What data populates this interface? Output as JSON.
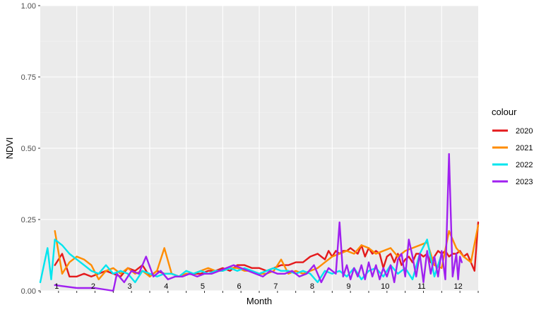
{
  "chart_data": {
    "type": "line",
    "xlabel": "Month",
    "ylabel": "NDVI",
    "ylim": [
      0,
      1
    ],
    "xlim": [
      0,
      12
    ],
    "yticks": [
      "0.00",
      "0.25",
      "0.50",
      "0.75",
      "1.00"
    ],
    "ytick_values": [
      0,
      0.25,
      0.5,
      0.75,
      1.0
    ],
    "month_labels": [
      "1",
      "2",
      "3",
      "4",
      "5",
      "6",
      "7",
      "8",
      "9",
      "10",
      "11",
      "12"
    ],
    "grid": true,
    "legend_title": "colour",
    "legend_position": "right",
    "series": [
      {
        "name": "2020",
        "color": "#e41a1c",
        "x": [
          0.4,
          0.6,
          0.8,
          1.0,
          1.2,
          1.4,
          1.6,
          1.8,
          2.0,
          2.2,
          2.4,
          2.6,
          2.8,
          3.0,
          3.2,
          3.4,
          3.6,
          3.8,
          4.0,
          4.2,
          4.4,
          4.6,
          4.8,
          5.0,
          5.2,
          5.4,
          5.6,
          5.8,
          6.0,
          6.2,
          6.4,
          6.6,
          6.8,
          7.0,
          7.2,
          7.4,
          7.6,
          7.8,
          7.9,
          8.0,
          8.1,
          8.2,
          8.3,
          8.4,
          8.5,
          8.6,
          8.7,
          8.8,
          8.9,
          9.0,
          9.1,
          9.2,
          9.3,
          9.4,
          9.5,
          9.6,
          9.7,
          9.8,
          9.9,
          10.0,
          10.1,
          10.2,
          10.3,
          10.4,
          10.5,
          10.6,
          10.7,
          10.8,
          10.9,
          11.0,
          11.1,
          11.2,
          11.3,
          11.4,
          11.5,
          11.6,
          11.7,
          11.8,
          11.9,
          12.0
        ],
        "values": [
          0.09,
          0.13,
          0.05,
          0.05,
          0.06,
          0.05,
          0.06,
          0.07,
          0.06,
          0.05,
          0.08,
          0.07,
          0.09,
          0.05,
          0.07,
          0.06,
          0.06,
          0.05,
          0.06,
          0.06,
          0.06,
          0.07,
          0.07,
          0.08,
          0.07,
          0.09,
          0.09,
          0.08,
          0.08,
          0.07,
          0.08,
          0.09,
          0.09,
          0.1,
          0.1,
          0.12,
          0.13,
          0.11,
          0.14,
          0.12,
          0.14,
          0.13,
          0.14,
          0.14,
          0.15,
          0.14,
          0.13,
          0.16,
          0.12,
          0.15,
          0.13,
          0.14,
          0.13,
          0.08,
          0.12,
          0.13,
          0.1,
          0.13,
          0.09,
          0.11,
          0.12,
          0.1,
          0.13,
          0.13,
          0.12,
          0.13,
          0.1,
          0.12,
          0.14,
          0.13,
          0.14,
          0.12,
          0.13,
          0.13,
          0.14,
          0.12,
          0.13,
          0.1,
          0.07,
          0.24
        ]
      },
      {
        "name": "2021",
        "color": "#ff8c00",
        "x": [
          0.4,
          0.6,
          0.8,
          1.0,
          1.2,
          1.4,
          1.6,
          1.8,
          2.0,
          2.2,
          2.4,
          2.6,
          2.8,
          3.0,
          3.2,
          3.4,
          3.6,
          3.8,
          4.0,
          4.2,
          4.4,
          4.6,
          4.8,
          5.0,
          5.2,
          5.4,
          5.6,
          5.8,
          6.0,
          6.2,
          6.4,
          6.6,
          6.8,
          7.0,
          7.2,
          7.4,
          7.6,
          7.8,
          8.0,
          8.2,
          8.4,
          8.6,
          8.8,
          9.0,
          9.2,
          9.4,
          9.6,
          9.8,
          10.0,
          10.2,
          10.4,
          10.6,
          10.8,
          11.0,
          11.2,
          11.4,
          11.6,
          11.8,
          12.0
        ],
        "values": [
          0.21,
          0.06,
          0.1,
          0.12,
          0.11,
          0.09,
          0.04,
          0.07,
          0.08,
          0.06,
          0.08,
          0.06,
          0.07,
          0.05,
          0.07,
          0.15,
          0.06,
          0.05,
          0.06,
          0.06,
          0.07,
          0.08,
          0.07,
          0.07,
          0.08,
          0.08,
          0.07,
          0.07,
          0.06,
          0.06,
          0.07,
          0.11,
          0.06,
          0.07,
          0.06,
          0.07,
          0.08,
          0.1,
          0.12,
          0.13,
          0.14,
          0.13,
          0.16,
          0.15,
          0.13,
          0.14,
          0.15,
          0.12,
          0.14,
          0.15,
          0.16,
          0.17,
          0.09,
          0.08,
          0.21,
          0.15,
          0.12,
          0.1,
          0.23
        ]
      },
      {
        "name": "2022",
        "color": "#00e5ee",
        "x": [
          0.0,
          0.2,
          0.3,
          0.4,
          0.6,
          0.8,
          1.0,
          1.2,
          1.4,
          1.6,
          1.8,
          2.0,
          2.2,
          2.4,
          2.6,
          2.8,
          3.0,
          3.2,
          3.4,
          3.6,
          3.8,
          4.0,
          4.2,
          4.4,
          4.6,
          4.8,
          5.0,
          5.2,
          5.4,
          5.6,
          5.8,
          6.0,
          6.2,
          6.4,
          6.6,
          6.8,
          7.0,
          7.2,
          7.4,
          7.6,
          7.8,
          8.0,
          8.2,
          8.4,
          8.6,
          8.8,
          9.0,
          9.2,
          9.4,
          9.6,
          9.8,
          10.0,
          10.2,
          10.4,
          10.6,
          10.8,
          11.0
        ],
        "values": [
          0.03,
          0.15,
          0.04,
          0.18,
          0.16,
          0.13,
          0.11,
          0.09,
          0.07,
          0.06,
          0.09,
          0.06,
          0.07,
          0.06,
          0.03,
          0.07,
          0.06,
          0.05,
          0.06,
          0.06,
          0.05,
          0.07,
          0.06,
          0.07,
          0.06,
          0.07,
          0.07,
          0.08,
          0.07,
          0.08,
          0.07,
          0.06,
          0.07,
          0.08,
          0.07,
          0.07,
          0.06,
          0.07,
          0.06,
          0.03,
          0.07,
          0.06,
          0.07,
          0.05,
          0.08,
          0.04,
          0.07,
          0.08,
          0.05,
          0.09,
          0.06,
          0.08,
          0.04,
          0.13,
          0.18,
          0.05,
          0.13
        ]
      },
      {
        "name": "2023",
        "color": "#a020f0",
        "x": [
          0.4,
          1.0,
          1.5,
          2.0,
          2.1,
          2.3,
          2.5,
          2.7,
          2.9,
          3.1,
          3.3,
          3.5,
          3.7,
          3.9,
          4.1,
          4.3,
          4.5,
          4.7,
          4.9,
          5.1,
          5.3,
          5.5,
          5.7,
          5.9,
          6.1,
          6.3,
          6.5,
          6.7,
          6.9,
          7.1,
          7.3,
          7.5,
          7.7,
          7.9,
          8.1,
          8.2,
          8.3,
          8.4,
          8.5,
          8.6,
          8.7,
          8.8,
          8.9,
          9.0,
          9.1,
          9.2,
          9.3,
          9.4,
          9.5,
          9.6,
          9.7,
          9.8,
          9.9,
          10.0,
          10.1,
          10.2,
          10.3,
          10.4,
          10.5,
          10.6,
          10.7,
          10.8,
          10.9,
          11.0,
          11.1,
          11.2,
          11.3,
          11.4,
          11.45,
          11.5,
          11.55
        ],
        "values": [
          0.02,
          0.01,
          0.01,
          0.0,
          0.06,
          0.03,
          0.07,
          0.06,
          0.12,
          0.05,
          0.07,
          0.04,
          0.05,
          0.05,
          0.06,
          0.05,
          0.06,
          0.06,
          0.07,
          0.08,
          0.09,
          0.08,
          0.07,
          0.06,
          0.05,
          0.07,
          0.06,
          0.06,
          0.07,
          0.05,
          0.06,
          0.09,
          0.03,
          0.08,
          0.06,
          0.24,
          0.05,
          0.09,
          0.04,
          0.08,
          0.05,
          0.09,
          0.04,
          0.1,
          0.05,
          0.09,
          0.04,
          0.08,
          0.05,
          0.09,
          0.03,
          0.11,
          0.13,
          0.05,
          0.18,
          0.12,
          0.05,
          0.13,
          0.03,
          0.14,
          0.06,
          0.12,
          0.05,
          0.14,
          0.04,
          0.48,
          0.05,
          0.13,
          0.04,
          0.12,
          0.1
        ]
      }
    ]
  }
}
